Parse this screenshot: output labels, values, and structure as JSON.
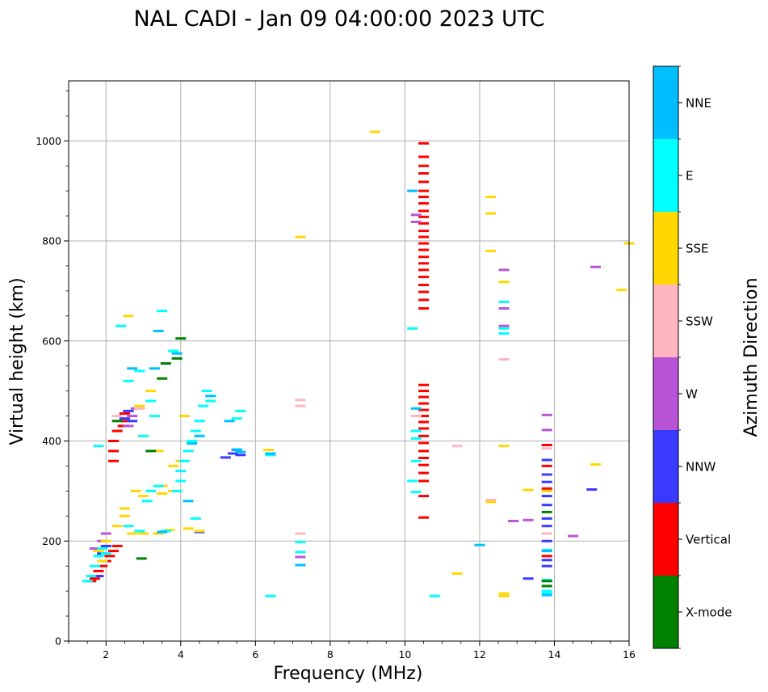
{
  "chart_data": {
    "type": "scatter",
    "title": "NAL CADI - Jan 09 04:00:00 2023 UTC",
    "xlabel": "Frequency (MHz)",
    "ylabel": "Virtual height (km)",
    "xlim": [
      1,
      16
    ],
    "ylim": [
      0,
      1120
    ],
    "xticks": [
      2,
      4,
      6,
      8,
      10,
      12,
      14,
      16
    ],
    "yticks": [
      0,
      200,
      400,
      600,
      800,
      1000
    ],
    "x_minor_step": 0.5,
    "y_minor_step": 50,
    "grid": true,
    "colorbar": {
      "label": "Azimuth Direction",
      "categories": [
        {
          "name": "X-mode",
          "color": "#008000"
        },
        {
          "name": "Vertical",
          "color": "#ff0000"
        },
        {
          "name": "NNW",
          "color": "#3a3aff"
        },
        {
          "name": "W",
          "color": "#b755d6"
        },
        {
          "name": "SSW",
          "color": "#ffb6c1"
        },
        {
          "name": "SSE",
          "color": "#ffd700"
        },
        {
          "name": "E",
          "color": "#00ffff"
        },
        {
          "name": "NNE",
          "color": "#00bfff"
        }
      ]
    },
    "echo_width_mhz": 0.28,
    "echoes": [
      {
        "category": "Vertical",
        "points": [
          [
            10.5,
            995
          ],
          [
            10.5,
            968
          ],
          [
            10.5,
            950
          ],
          [
            10.5,
            935
          ],
          [
            10.5,
            918
          ],
          [
            10.5,
            900
          ],
          [
            10.5,
            888
          ],
          [
            10.5,
            875
          ],
          [
            10.5,
            860
          ],
          [
            10.5,
            848
          ],
          [
            10.5,
            835
          ],
          [
            10.5,
            820
          ],
          [
            10.5,
            808
          ],
          [
            10.5,
            795
          ],
          [
            10.5,
            782
          ],
          [
            10.5,
            768
          ],
          [
            10.5,
            755
          ],
          [
            10.5,
            742
          ],
          [
            10.5,
            728
          ],
          [
            10.5,
            712
          ],
          [
            10.5,
            698
          ],
          [
            10.5,
            682
          ],
          [
            10.5,
            665
          ],
          [
            10.5,
            512
          ],
          [
            10.5,
            500
          ],
          [
            10.5,
            488
          ],
          [
            10.5,
            475
          ],
          [
            10.5,
            462
          ],
          [
            10.5,
            450
          ],
          [
            10.5,
            438
          ],
          [
            10.5,
            425
          ],
          [
            10.5,
            410
          ],
          [
            10.5,
            396
          ],
          [
            10.5,
            380
          ],
          [
            10.5,
            366
          ],
          [
            10.5,
            352
          ],
          [
            10.5,
            336
          ],
          [
            10.5,
            320
          ],
          [
            10.5,
            290
          ],
          [
            10.5,
            247
          ],
          [
            13.8,
            392
          ],
          [
            13.8,
            350
          ],
          [
            13.8,
            305
          ],
          [
            13.8,
            170
          ],
          [
            2.5,
            455
          ],
          [
            2.55,
            440
          ],
          [
            2.45,
            430
          ],
          [
            2.3,
            420
          ],
          [
            2.2,
            400
          ],
          [
            2.2,
            380
          ],
          [
            2.2,
            360
          ],
          [
            2.3,
            190
          ],
          [
            2.2,
            180
          ],
          [
            2.1,
            170
          ],
          [
            2.0,
            160
          ],
          [
            1.9,
            150
          ],
          [
            1.8,
            140
          ],
          [
            1.7,
            125
          ],
          [
            1.75,
            130
          ],
          [
            1.6,
            120
          ]
        ]
      },
      {
        "category": "NNW",
        "points": [
          [
            13.8,
            362
          ],
          [
            13.8,
            333
          ],
          [
            13.8,
            318
          ],
          [
            13.8,
            290
          ],
          [
            13.8,
            272
          ],
          [
            13.8,
            245
          ],
          [
            13.8,
            230
          ],
          [
            13.8,
            200
          ],
          [
            13.8,
            162
          ],
          [
            13.8,
            150
          ],
          [
            13.3,
            125
          ],
          [
            15.0,
            303
          ],
          [
            5.5,
            382
          ],
          [
            5.4,
            375
          ],
          [
            5.6,
            372
          ],
          [
            5.2,
            367
          ],
          [
            4.5,
            218
          ],
          [
            2.5,
            445
          ],
          [
            2.7,
            440
          ],
          [
            2.6,
            460
          ],
          [
            1.8,
            130
          ],
          [
            1.9,
            175
          ],
          [
            2.0,
            190
          ]
        ]
      },
      {
        "category": "W",
        "points": [
          [
            10.3,
            852
          ],
          [
            10.3,
            838
          ],
          [
            12.65,
            742
          ],
          [
            12.65,
            665
          ],
          [
            12.65,
            630
          ],
          [
            13.8,
            452
          ],
          [
            13.8,
            422
          ],
          [
            13.3,
            242
          ],
          [
            12.9,
            240
          ],
          [
            14.5,
            210
          ],
          [
            15.1,
            748
          ],
          [
            7.2,
            168
          ],
          [
            2.7,
            450
          ],
          [
            2.8,
            465
          ],
          [
            2.6,
            430
          ],
          [
            1.9,
            200
          ],
          [
            2.0,
            215
          ],
          [
            1.7,
            185
          ]
        ]
      },
      {
        "category": "SSW",
        "points": [
          [
            12.65,
            563
          ],
          [
            12.3,
            282
          ],
          [
            13.8,
            385
          ],
          [
            13.8,
            215
          ],
          [
            11.4,
            390
          ],
          [
            7.2,
            482
          ],
          [
            7.2,
            470
          ],
          [
            7.2,
            215
          ],
          [
            10.3,
            450
          ],
          [
            2.9,
            465
          ],
          [
            2.3,
            450
          ]
        ]
      },
      {
        "category": "SSE",
        "points": [
          [
            9.2,
            1018
          ],
          [
            12.3,
            888
          ],
          [
            12.3,
            855
          ],
          [
            12.3,
            780
          ],
          [
            12.65,
            718
          ],
          [
            12.65,
            390
          ],
          [
            12.3,
            278
          ],
          [
            12.65,
            95
          ],
          [
            11.4,
            135
          ],
          [
            13.3,
            302
          ],
          [
            13.8,
            300
          ],
          [
            15.1,
            353
          ],
          [
            15.8,
            702
          ],
          [
            16.0,
            795
          ],
          [
            6.35,
            382
          ],
          [
            4.5,
            220
          ],
          [
            4.2,
            225
          ],
          [
            3.8,
            300
          ],
          [
            3.5,
            295
          ],
          [
            3.7,
            222
          ],
          [
            3.4,
            215
          ],
          [
            3.0,
            215
          ],
          [
            2.7,
            215
          ],
          [
            2.5,
            265
          ],
          [
            3.0,
            290
          ],
          [
            3.5,
            310
          ],
          [
            3.8,
            350
          ],
          [
            4.0,
            360
          ],
          [
            2.8,
            300
          ],
          [
            2.5,
            250
          ],
          [
            2.3,
            230
          ],
          [
            2.6,
            650
          ],
          [
            2.9,
            470
          ],
          [
            3.2,
            500
          ],
          [
            4.1,
            450
          ],
          [
            1.8,
            180
          ],
          [
            2.0,
            200
          ],
          [
            1.9,
            160
          ],
          [
            3.4,
            380
          ],
          [
            4.2,
            380
          ],
          [
            12.65,
            90
          ],
          [
            7.2,
            808
          ]
        ]
      },
      {
        "category": "E",
        "points": [
          [
            10.2,
            625
          ],
          [
            10.2,
            320
          ],
          [
            10.3,
            298
          ],
          [
            10.3,
            360
          ],
          [
            10.3,
            405
          ],
          [
            10.3,
            420
          ],
          [
            10.8,
            90
          ],
          [
            12.65,
            678
          ],
          [
            12.65,
            615
          ],
          [
            12.65,
            625
          ],
          [
            13.8,
            122
          ],
          [
            13.8,
            100
          ],
          [
            13.8,
            95
          ],
          [
            13.8,
            182
          ],
          [
            7.2,
            178
          ],
          [
            7.2,
            198
          ],
          [
            6.4,
            90
          ],
          [
            6.4,
            372
          ],
          [
            5.5,
            445
          ],
          [
            5.6,
            460
          ],
          [
            4.8,
            480
          ],
          [
            4.7,
            500
          ],
          [
            4.6,
            470
          ],
          [
            4.5,
            440
          ],
          [
            4.4,
            420
          ],
          [
            4.3,
            400
          ],
          [
            4.2,
            380
          ],
          [
            4.1,
            360
          ],
          [
            4.0,
            340
          ],
          [
            4.0,
            320
          ],
          [
            3.9,
            300
          ],
          [
            3.8,
            580
          ],
          [
            3.5,
            660
          ],
          [
            3.2,
            480
          ],
          [
            3.3,
            450
          ],
          [
            3.0,
            410
          ],
          [
            3.2,
            300
          ],
          [
            3.4,
            310
          ],
          [
            3.1,
            280
          ],
          [
            2.9,
            540
          ],
          [
            2.4,
            630
          ],
          [
            2.6,
            520
          ],
          [
            4.4,
            245
          ],
          [
            3.6,
            220
          ],
          [
            2.9,
            220
          ],
          [
            2.6,
            230
          ],
          [
            1.6,
            130
          ],
          [
            1.7,
            150
          ],
          [
            1.8,
            170
          ],
          [
            1.5,
            120
          ],
          [
            1.9,
            185
          ],
          [
            2.0,
            175
          ],
          [
            1.8,
            390
          ]
        ]
      },
      {
        "category": "NNE",
        "points": [
          [
            10.2,
            900
          ],
          [
            10.3,
            465
          ],
          [
            12.0,
            192
          ],
          [
            13.8,
            180
          ],
          [
            13.8,
            92
          ],
          [
            7.2,
            152
          ],
          [
            6.4,
            375
          ],
          [
            5.5,
            383
          ],
          [
            5.6,
            378
          ],
          [
            5.3,
            440
          ],
          [
            4.8,
            490
          ],
          [
            4.5,
            410
          ],
          [
            4.3,
            395
          ],
          [
            3.9,
            575
          ],
          [
            3.4,
            620
          ],
          [
            3.3,
            545
          ],
          [
            2.7,
            545
          ],
          [
            4.2,
            280
          ],
          [
            3.5,
            218
          ]
        ]
      },
      {
        "category": "X-mode",
        "points": [
          [
            13.8,
            258
          ],
          [
            13.8,
            120
          ],
          [
            13.8,
            110
          ],
          [
            2.95,
            165
          ],
          [
            3.6,
            555
          ],
          [
            3.9,
            565
          ],
          [
            3.5,
            525
          ],
          [
            4.0,
            605
          ],
          [
            2.3,
            440
          ],
          [
            3.2,
            380
          ]
        ]
      }
    ]
  }
}
